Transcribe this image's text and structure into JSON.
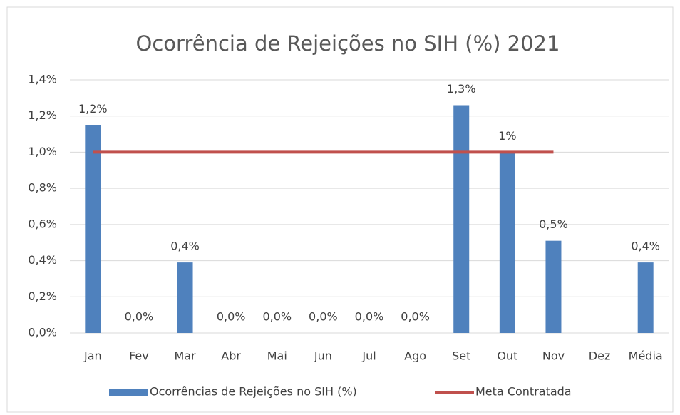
{
  "chart_data": {
    "type": "bar",
    "title": "Ocorrência de Rejeições no SIH (%) 2021",
    "categories": [
      "Jan",
      "Fev",
      "Mar",
      "Abr",
      "Mai",
      "Jun",
      "Jul",
      "Ago",
      "Set",
      "Out",
      "Nov",
      "Dez",
      "Média"
    ],
    "series": [
      {
        "name": "Ocorrências de Rejeições no SIH (%)",
        "type": "bar",
        "color": "#4f81bd",
        "values": [
          1.15,
          0,
          0.39,
          0,
          0,
          0,
          0,
          0,
          1.26,
          1.0,
          0.51,
          null,
          0.39
        ],
        "value_labels": [
          "1,2%",
          "0,0%",
          "0,4%",
          "0,0%",
          "0,0%",
          "0,0%",
          "0,0%",
          "0,0%",
          "1,3%",
          "1%",
          "0,5%",
          null,
          "0,4%"
        ]
      },
      {
        "name": "Meta Contratada",
        "type": "line",
        "color": "#c0504d",
        "values": [
          1.0,
          1.0,
          1.0,
          1.0,
          1.0,
          1.0,
          1.0,
          1.0,
          1.0,
          1.0,
          1.0,
          null,
          null
        ]
      }
    ],
    "ylim": [
      0,
      1.4
    ],
    "yticks": [
      {
        "value": 0,
        "label": "0,0%"
      },
      {
        "value": 0.2,
        "label": "0,2%"
      },
      {
        "value": 0.4,
        "label": "0,4%"
      },
      {
        "value": 0.6,
        "label": "0,6%"
      },
      {
        "value": 0.8,
        "label": "0,8%"
      },
      {
        "value": 1.0,
        "label": "1,0%"
      },
      {
        "value": 1.2,
        "label": "1,2%"
      },
      {
        "value": 1.4,
        "label": "1,4%"
      }
    ],
    "grid": true,
    "legend": "bottom"
  }
}
